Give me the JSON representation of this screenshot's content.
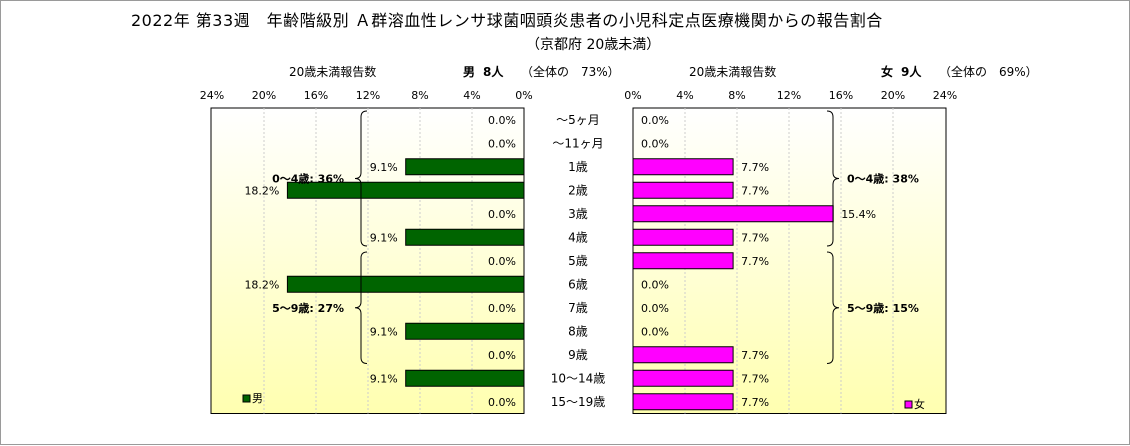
{
  "title": "2022年 第33週　年齢階級別 Ａ群溶血性レンサ球菌咽頭炎患者の小児科定点医療機関からの報告割合",
  "subtitle": "（京都府 20歳未満）",
  "left_header": {
    "metric": "20歳未満報告数",
    "sex": "男",
    "count": "8人",
    "share": "（全体の　73%）"
  },
  "right_header": {
    "metric": "20歳未満報告数",
    "sex": "女",
    "count": "9人",
    "share": "（全体の　69%）"
  },
  "colors": {
    "male": "#006400",
    "female": "#ff00ff",
    "plot_bg_top": "#ffffff",
    "plot_bg_bottom": "#ffffb0"
  },
  "chart_data": [
    {
      "type": "bar",
      "orientation": "horizontal",
      "direction": "right-to-left",
      "series": [
        {
          "name": "男",
          "values": [
            0.0,
            0.0,
            9.1,
            18.2,
            0.0,
            9.1,
            0.0,
            18.2,
            0.0,
            9.1,
            0.0,
            9.1,
            0.0
          ]
        }
      ],
      "labels": [
        "0.0%",
        "0.0%",
        "9.1%",
        "18.2%",
        "0.0%",
        "9.1%",
        "0.0%",
        "18.2%",
        "0.0%",
        "9.1%",
        "0.0%",
        "9.1%",
        "0.0%"
      ],
      "xlim": [
        0,
        24
      ],
      "xticks": [
        "24%",
        "20%",
        "16%",
        "12%",
        "8%",
        "4%",
        "0%"
      ],
      "legend": "男",
      "legend_position": "bottom-left",
      "groups": [
        {
          "label": "0〜4歳: 36%",
          "rows": [
            0,
            5
          ]
        },
        {
          "label": "5〜9歳: 27%",
          "rows": [
            6,
            10
          ]
        }
      ]
    },
    {
      "type": "bar",
      "orientation": "horizontal",
      "direction": "left-to-right",
      "series": [
        {
          "name": "女",
          "values": [
            0.0,
            0.0,
            7.7,
            7.7,
            15.4,
            7.7,
            7.7,
            0.0,
            0.0,
            0.0,
            7.7,
            7.7,
            7.7
          ]
        }
      ],
      "labels": [
        "0.0%",
        "0.0%",
        "7.7%",
        "7.7%",
        "15.4%",
        "7.7%",
        "7.7%",
        "0.0%",
        "0.0%",
        "0.0%",
        "7.7%",
        "7.7%",
        "7.7%"
      ],
      "xlim": [
        0,
        24
      ],
      "xticks": [
        "0%",
        "4%",
        "8%",
        "12%",
        "16%",
        "20%",
        "24%"
      ],
      "legend": "女",
      "legend_position": "bottom-right",
      "groups": [
        {
          "label": "0〜4歳: 38%",
          "rows": [
            0,
            5
          ]
        },
        {
          "label": "5〜9歳: 15%",
          "rows": [
            6,
            10
          ]
        }
      ]
    }
  ],
  "categories": [
    "〜5ヶ月",
    "〜11ヶ月",
    "1歳",
    "2歳",
    "3歳",
    "4歳",
    "5歳",
    "6歳",
    "7歳",
    "8歳",
    "9歳",
    "10〜14歳",
    "15〜19歳"
  ]
}
